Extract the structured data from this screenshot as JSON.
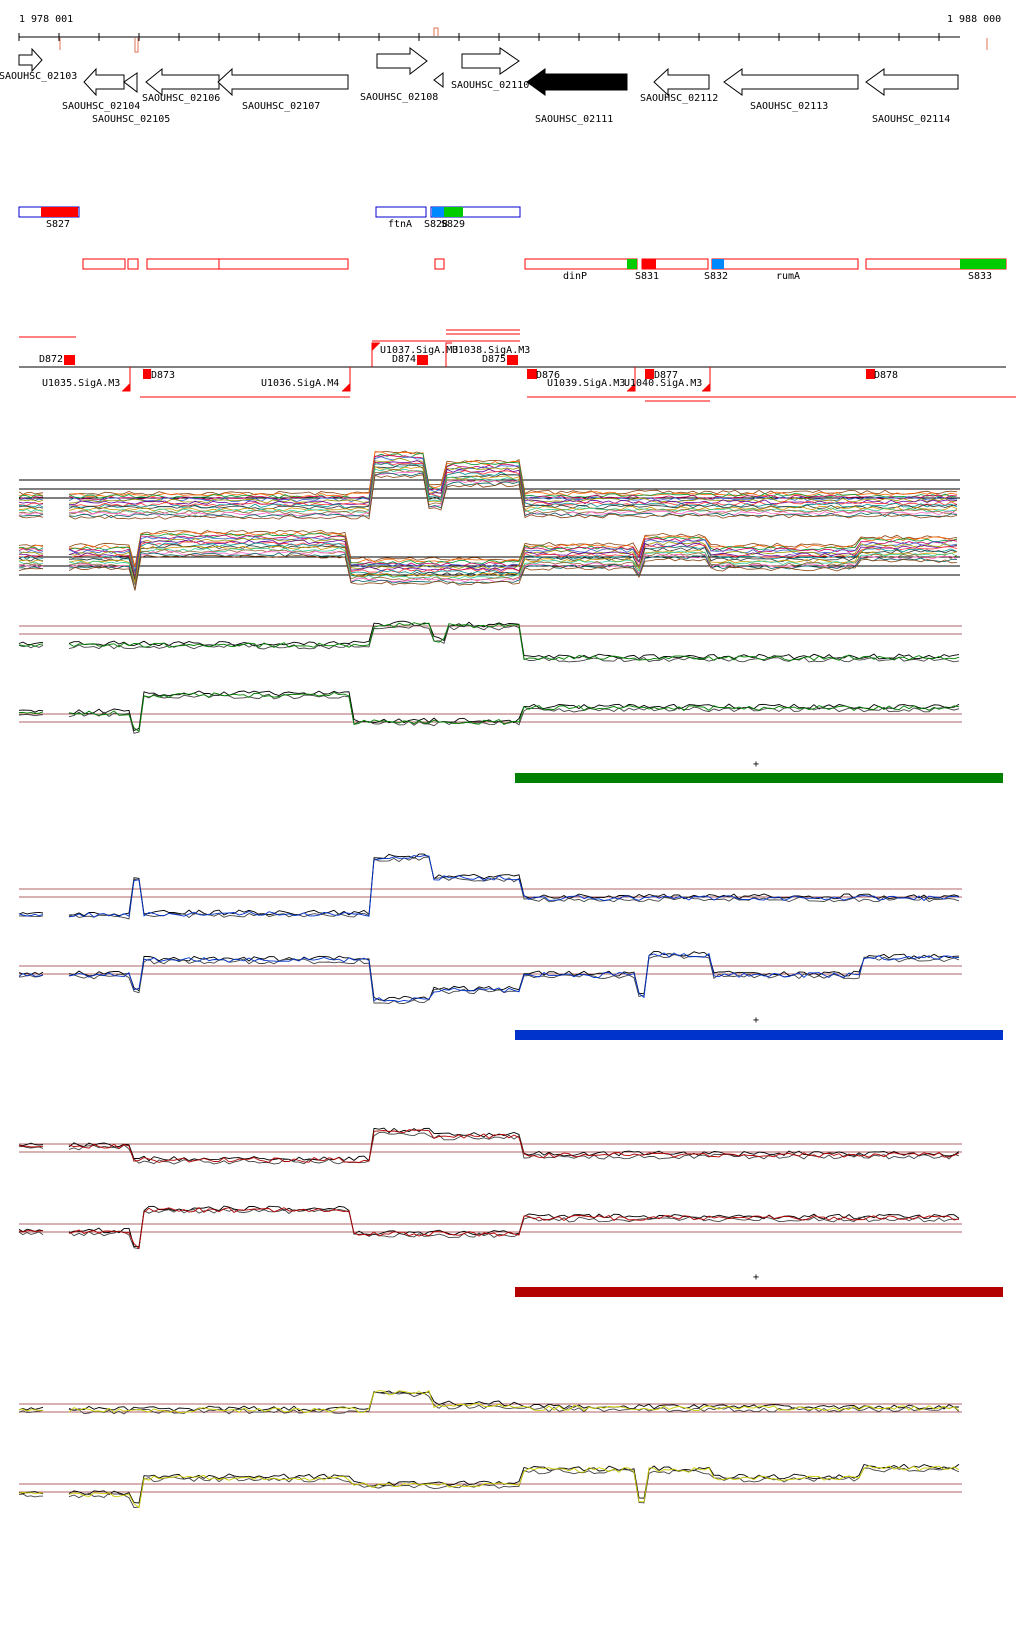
{
  "ruler": {
    "start_label": "1 978 001",
    "end_label": "1 988 000"
  },
  "genes": [
    {
      "name": "SAOUHSC_02103",
      "strand": "+",
      "filled": false
    },
    {
      "name": "SAOUHSC_02104",
      "strand": "-",
      "filled": false
    },
    {
      "name": "SAOUHSC_02105",
      "strand": "-",
      "filled": false
    },
    {
      "name": "SAOUHSC_02106",
      "strand": "-",
      "filled": false
    },
    {
      "name": "SAOUHSC_02107",
      "strand": "-",
      "filled": false
    },
    {
      "name": "SAOUHSC_02108",
      "strand": "+",
      "filled": false
    },
    {
      "name": "SAOUHSC_02110",
      "strand": "+",
      "filled": false
    },
    {
      "name": "SAOUHSC_02111",
      "strand": "-",
      "filled": true
    },
    {
      "name": "SAOUHSC_02112",
      "strand": "-",
      "filled": false
    },
    {
      "name": "SAOUHSC_02113",
      "strand": "-",
      "filled": false
    },
    {
      "name": "SAOUHSC_02114",
      "strand": "-",
      "filled": false
    }
  ],
  "plus_features": [
    {
      "label": "S827"
    },
    {
      "label": "ftnA"
    },
    {
      "label": "S828"
    },
    {
      "label": "S829"
    }
  ],
  "minus_features": [
    {
      "label": "dinP"
    },
    {
      "label": "S831"
    },
    {
      "label": "S832"
    },
    {
      "label": "rumA"
    },
    {
      "label": "S833"
    }
  ],
  "promoters_plus": [
    {
      "label": "U1037.SigA.M3"
    },
    {
      "label": "U1038.SigA.M3"
    }
  ],
  "promoters_minus": [
    {
      "label": "U1035.SigA.M3"
    },
    {
      "label": "U1036.SigA.M4"
    },
    {
      "label": "U1039.SigA.M3"
    },
    {
      "label": "U1040.SigA.M3"
    }
  ],
  "terminators": [
    {
      "label": "D872"
    },
    {
      "label": "D873"
    },
    {
      "label": "D874"
    },
    {
      "label": "D875"
    },
    {
      "label": "D876"
    },
    {
      "label": "D877"
    },
    {
      "label": "D878"
    }
  ],
  "condition_tracks": [
    {
      "color": "#008000",
      "strand_marker": "+"
    },
    {
      "color": "#0033cc",
      "strand_marker": "+"
    },
    {
      "color": "#b30000",
      "strand_marker": "+"
    },
    {
      "color": "#cccc00",
      "strand_marker": ""
    }
  ],
  "colors": {
    "gene_outline": "#000000",
    "rna_outline_plus": "#0000cc",
    "rna_outline_minus": "#ff0000",
    "high_signal": "#ff0000",
    "low_signal": "#00cc00",
    "blue_block": "#0088ff",
    "reference_line": "#993333"
  }
}
